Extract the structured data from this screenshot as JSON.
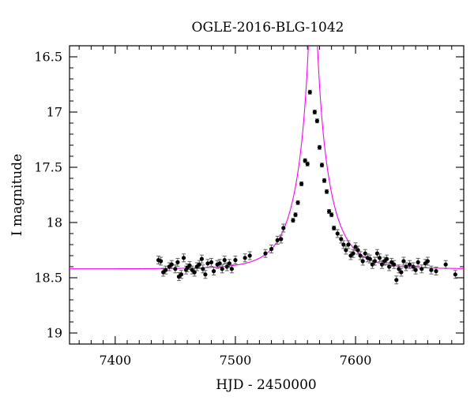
{
  "chart_data": {
    "type": "scatter",
    "title": "OGLE-2016-BLG-1042",
    "xlabel": "HJD - 2450000",
    "ylabel": "I magnitude",
    "xlim": [
      7362,
      7690
    ],
    "ylim": [
      19.1,
      16.4
    ],
    "y_inverted": true,
    "x_ticks": [
      7400,
      7500,
      7600
    ],
    "y_ticks": [
      16.5,
      17,
      17.5,
      18,
      18.5,
      19
    ],
    "y_tick_labels": [
      "16.5",
      "17",
      "17.5",
      "18",
      "18.5",
      "19"
    ],
    "grid": false,
    "legend": "none",
    "model_color": "#ff00ff",
    "point_color": "#000000",
    "model": {
      "name": "",
      "t0": 7564.5,
      "u0": 0.06,
      "tE": 26,
      "baseline_mag": 18.42
    },
    "series": [
      {
        "name": "",
        "x": [
          7436,
          7438,
          7440,
          7442,
          7445,
          7447,
          7450,
          7452,
          7453,
          7455,
          7457,
          7459,
          7460,
          7462,
          7464,
          7466,
          7468,
          7470,
          7472,
          7473,
          7475,
          7477,
          7480,
          7482,
          7485,
          7487,
          7489,
          7491,
          7493,
          7495,
          7497,
          7500,
          7508,
          7512,
          7525,
          7530,
          7535,
          7538,
          7540,
          7548,
          7550,
          7552,
          7555,
          7558,
          7560,
          7562,
          7566,
          7568,
          7570,
          7572,
          7574,
          7576,
          7578,
          7580,
          7582,
          7585,
          7588,
          7590,
          7592,
          7594,
          7596,
          7598,
          7600,
          7602,
          7604,
          7606,
          7608,
          7610,
          7612,
          7614,
          7616,
          7618,
          7620,
          7622,
          7624,
          7626,
          7628,
          7630,
          7632,
          7634,
          7636,
          7638,
          7640,
          7642,
          7645,
          7648,
          7650,
          7652,
          7655,
          7658,
          7660,
          7663,
          7667,
          7675,
          7683
        ],
        "y": [
          18.34,
          18.35,
          18.45,
          18.43,
          18.4,
          18.38,
          18.42,
          18.36,
          18.49,
          18.47,
          18.32,
          18.43,
          18.41,
          18.39,
          18.43,
          18.45,
          18.4,
          18.38,
          18.33,
          18.42,
          18.47,
          18.37,
          18.36,
          18.44,
          18.38,
          18.37,
          18.42,
          18.34,
          18.4,
          18.37,
          18.42,
          18.34,
          18.32,
          18.3,
          18.28,
          18.24,
          18.16,
          18.15,
          18.05,
          17.98,
          17.93,
          17.82,
          17.65,
          17.44,
          17.47,
          16.82,
          17.0,
          17.08,
          17.32,
          17.48,
          17.62,
          17.72,
          17.9,
          17.93,
          18.05,
          18.1,
          18.15,
          18.2,
          18.25,
          18.2,
          18.3,
          18.28,
          18.22,
          18.25,
          18.3,
          18.35,
          18.28,
          18.32,
          18.33,
          18.38,
          18.35,
          18.28,
          18.32,
          18.38,
          18.35,
          18.33,
          18.4,
          18.36,
          18.38,
          18.52,
          18.42,
          18.45,
          18.35,
          18.4,
          18.38,
          18.4,
          18.43,
          18.36,
          18.42,
          18.37,
          18.35,
          18.43,
          18.44,
          18.38,
          18.47
        ]
      }
    ]
  }
}
